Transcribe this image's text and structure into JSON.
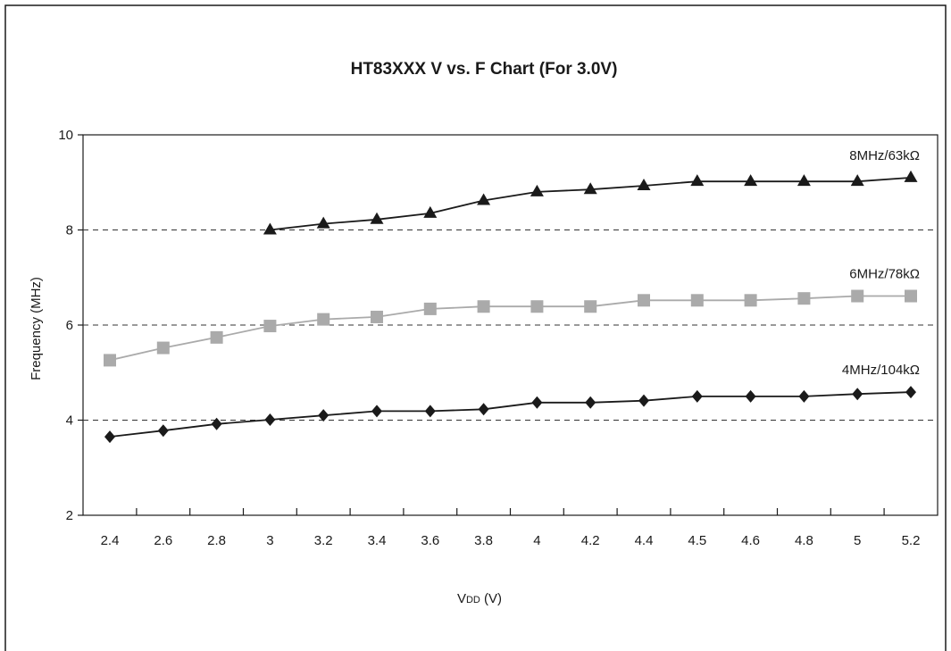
{
  "chart_data": {
    "type": "line",
    "title": "HT83XXX V vs. F Chart (For 3.0V)",
    "xlabel_main": "V",
    "xlabel_sub": "DD",
    "xlabel_suffix": " (V)",
    "ylabel": "Frequency (MHz)",
    "categories": [
      "2.4",
      "2.6",
      "2.8",
      "3",
      "3.2",
      "3.4",
      "3.6",
      "3.8",
      "4",
      "4.2",
      "4.4",
      "4.5",
      "4.6",
      "4.8",
      "5",
      "5.2"
    ],
    "ylim": [
      2,
      10
    ],
    "yticks": [
      2,
      4,
      6,
      8,
      10
    ],
    "dashed_gridlines": [
      4,
      6,
      8
    ],
    "series": [
      {
        "name": "8MHz/63kΩ",
        "marker": "triangle",
        "color": "#1a1a1a",
        "values": [
          null,
          null,
          null,
          8.0,
          8.13,
          8.22,
          8.35,
          8.62,
          8.8,
          8.85,
          8.93,
          9.02,
          9.02,
          9.02,
          9.02,
          9.1
        ]
      },
      {
        "name": "6MHz/78kΩ",
        "marker": "square",
        "color": "#aaaaaa",
        "values": [
          5.26,
          5.52,
          5.74,
          5.98,
          6.12,
          6.17,
          6.34,
          6.39,
          6.39,
          6.39,
          6.52,
          6.52,
          6.52,
          6.56,
          6.61,
          6.61
        ]
      },
      {
        "name": "4MHz/104kΩ",
        "marker": "diamond",
        "color": "#1a1a1a",
        "values": [
          3.65,
          3.78,
          3.92,
          4.01,
          4.1,
          4.19,
          4.19,
          4.23,
          4.37,
          4.37,
          4.41,
          4.5,
          4.5,
          4.5,
          4.55,
          4.59
        ]
      }
    ]
  }
}
